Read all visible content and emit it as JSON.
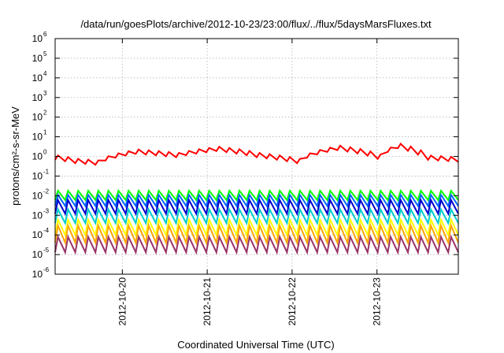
{
  "chart_data": {
    "type": "line",
    "title": "/data/run/goesPlots/archive/2012-10-23/23:00/flux/../flux/5daysMarsFluxes.txt",
    "xlabel": "Coordinated Universal Time (UTC)",
    "ylabel": "protons/cm²-s-sr-MeV",
    "yscale": "log",
    "ylim": [
      1e-06,
      1000000.0
    ],
    "xlim": [
      "2012-10-19T05:00",
      "2012-10-23T23:00"
    ],
    "grid": true,
    "legend": "none",
    "y_ticks": [
      {
        "base": "10",
        "exp": "-6",
        "value": 1e-06
      },
      {
        "base": "10",
        "exp": "-5",
        "value": 1e-05
      },
      {
        "base": "10",
        "exp": "-4",
        "value": 0.0001
      },
      {
        "base": "10",
        "exp": "-3",
        "value": 0.001
      },
      {
        "base": "10",
        "exp": "-2",
        "value": 0.01
      },
      {
        "base": "10",
        "exp": "-1",
        "value": 0.1
      },
      {
        "base": "10",
        "exp": "0",
        "value": 1
      },
      {
        "base": "10",
        "exp": "1",
        "value": 10
      },
      {
        "base": "10",
        "exp": "2",
        "value": 100
      },
      {
        "base": "10",
        "exp": "3",
        "value": 1000
      },
      {
        "base": "10",
        "exp": "4",
        "value": 10000
      },
      {
        "base": "10",
        "exp": "5",
        "value": 100000
      },
      {
        "base": "10",
        "exp": "6",
        "value": 1000000
      }
    ],
    "x_ticks": [
      {
        "label": "2012-10-20",
        "value": "2012-10-20T00:00"
      },
      {
        "label": "2012-10-21",
        "value": "2012-10-21T00:00"
      },
      {
        "label": "2012-10-22",
        "value": "2012-10-22T00:00"
      },
      {
        "label": "2012-10-23",
        "value": "2012-10-23T00:00"
      }
    ],
    "series": [
      {
        "color": "#ff0000",
        "kind": "sawtooth",
        "peak": 1.5,
        "trough": 0.6,
        "period_hours": 3,
        "envelope": [
          [
            0,
            0.9
          ],
          [
            0.05,
            0.6
          ],
          [
            0.1,
            0.5
          ],
          [
            0.2,
            1.8
          ],
          [
            0.3,
            1.2
          ],
          [
            0.4,
            2.5
          ],
          [
            0.5,
            1.2
          ],
          [
            0.6,
            0.6
          ],
          [
            0.7,
            2.8
          ],
          [
            0.8,
            1.0
          ],
          [
            0.85,
            3.5
          ],
          [
            0.92,
            0.9
          ],
          [
            1,
            0.7
          ]
        ]
      },
      {
        "color": "#00ff00",
        "kind": "sawtooth",
        "peak": 0.018,
        "trough": 0.006,
        "period_hours": 3
      },
      {
        "color": "#0066ff",
        "kind": "sawtooth",
        "peak": 0.011,
        "trough": 0.003,
        "period_hours": 3
      },
      {
        "color": "#0000cc",
        "kind": "sawtooth",
        "peak": 0.006,
        "trough": 0.0012,
        "period_hours": 3
      },
      {
        "color": "#00cccc",
        "kind": "sawtooth",
        "peak": 0.002,
        "trough": 0.0004,
        "period_hours": 3
      },
      {
        "color": "#ffff00",
        "kind": "sawtooth",
        "peak": 0.0006,
        "trough": 0.0001,
        "period_hours": 3
      },
      {
        "color": "#ffa500",
        "kind": "sawtooth",
        "peak": 0.0003,
        "trough": 4e-05,
        "period_hours": 3
      },
      {
        "color": "#993366",
        "kind": "sawtooth",
        "peak": 8e-05,
        "trough": 1.3e-05,
        "period_hours": 3
      }
    ]
  }
}
